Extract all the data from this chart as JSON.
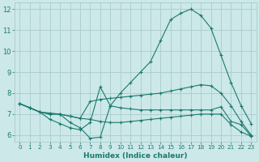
{
  "xlabel": "Humidex (Indice chaleur)",
  "bg_color": "#cce8e8",
  "grid_color": "#aacccc",
  "line_color": "#1a7a6e",
  "xlim": [
    -0.5,
    23.5
  ],
  "ylim": [
    5.7,
    12.3
  ],
  "xticks": [
    0,
    1,
    2,
    3,
    4,
    5,
    6,
    7,
    8,
    9,
    10,
    11,
    12,
    13,
    14,
    15,
    16,
    17,
    18,
    19,
    20,
    21,
    22,
    23
  ],
  "yticks": [
    6,
    7,
    8,
    9,
    10,
    11,
    12
  ],
  "line1_x": [
    0,
    1,
    2,
    3,
    4,
    5,
    6,
    7,
    8,
    9,
    10,
    11,
    12,
    13,
    14,
    15,
    16,
    17,
    18,
    19,
    20,
    21,
    22,
    23
  ],
  "line1_y": [
    7.5,
    7.3,
    7.1,
    7.0,
    7.0,
    6.6,
    6.35,
    5.85,
    5.9,
    7.4,
    8.0,
    8.5,
    9.0,
    9.5,
    10.5,
    11.5,
    11.8,
    12.0,
    11.7,
    11.1,
    9.8,
    8.5,
    7.4,
    6.55
  ],
  "line2_x": [
    0,
    1,
    2,
    3,
    4,
    5,
    6,
    7,
    8,
    9,
    10,
    11,
    12,
    13,
    14,
    15,
    16,
    17,
    18,
    19,
    20,
    21,
    22,
    23
  ],
  "line2_y": [
    7.5,
    7.3,
    7.1,
    7.05,
    7.0,
    6.9,
    6.8,
    7.6,
    7.7,
    7.75,
    7.8,
    7.85,
    7.9,
    7.95,
    8.0,
    8.1,
    8.2,
    8.3,
    8.4,
    8.35,
    8.0,
    7.4,
    6.65,
    6.0
  ],
  "line3_x": [
    0,
    1,
    2,
    3,
    4,
    5,
    6,
    7,
    8,
    9,
    10,
    11,
    12,
    13,
    14,
    15,
    16,
    17,
    18,
    19,
    20,
    21,
    22,
    23
  ],
  "line3_y": [
    7.5,
    7.3,
    7.1,
    7.0,
    7.0,
    6.9,
    6.8,
    6.75,
    6.65,
    6.6,
    6.6,
    6.65,
    6.7,
    6.75,
    6.8,
    6.85,
    6.9,
    6.95,
    7.0,
    7.0,
    7.0,
    6.5,
    6.15,
    5.95
  ],
  "line4_x": [
    0,
    1,
    2,
    3,
    4,
    5,
    6,
    7,
    8,
    9,
    10,
    11,
    12,
    13,
    14,
    15,
    16,
    17,
    18,
    19,
    20,
    21,
    22,
    23
  ],
  "line4_y": [
    7.5,
    7.3,
    7.1,
    6.75,
    6.55,
    6.35,
    6.25,
    6.6,
    8.3,
    7.4,
    7.3,
    7.25,
    7.2,
    7.2,
    7.2,
    7.2,
    7.2,
    7.2,
    7.2,
    7.2,
    7.35,
    6.65,
    6.5,
    5.95
  ]
}
